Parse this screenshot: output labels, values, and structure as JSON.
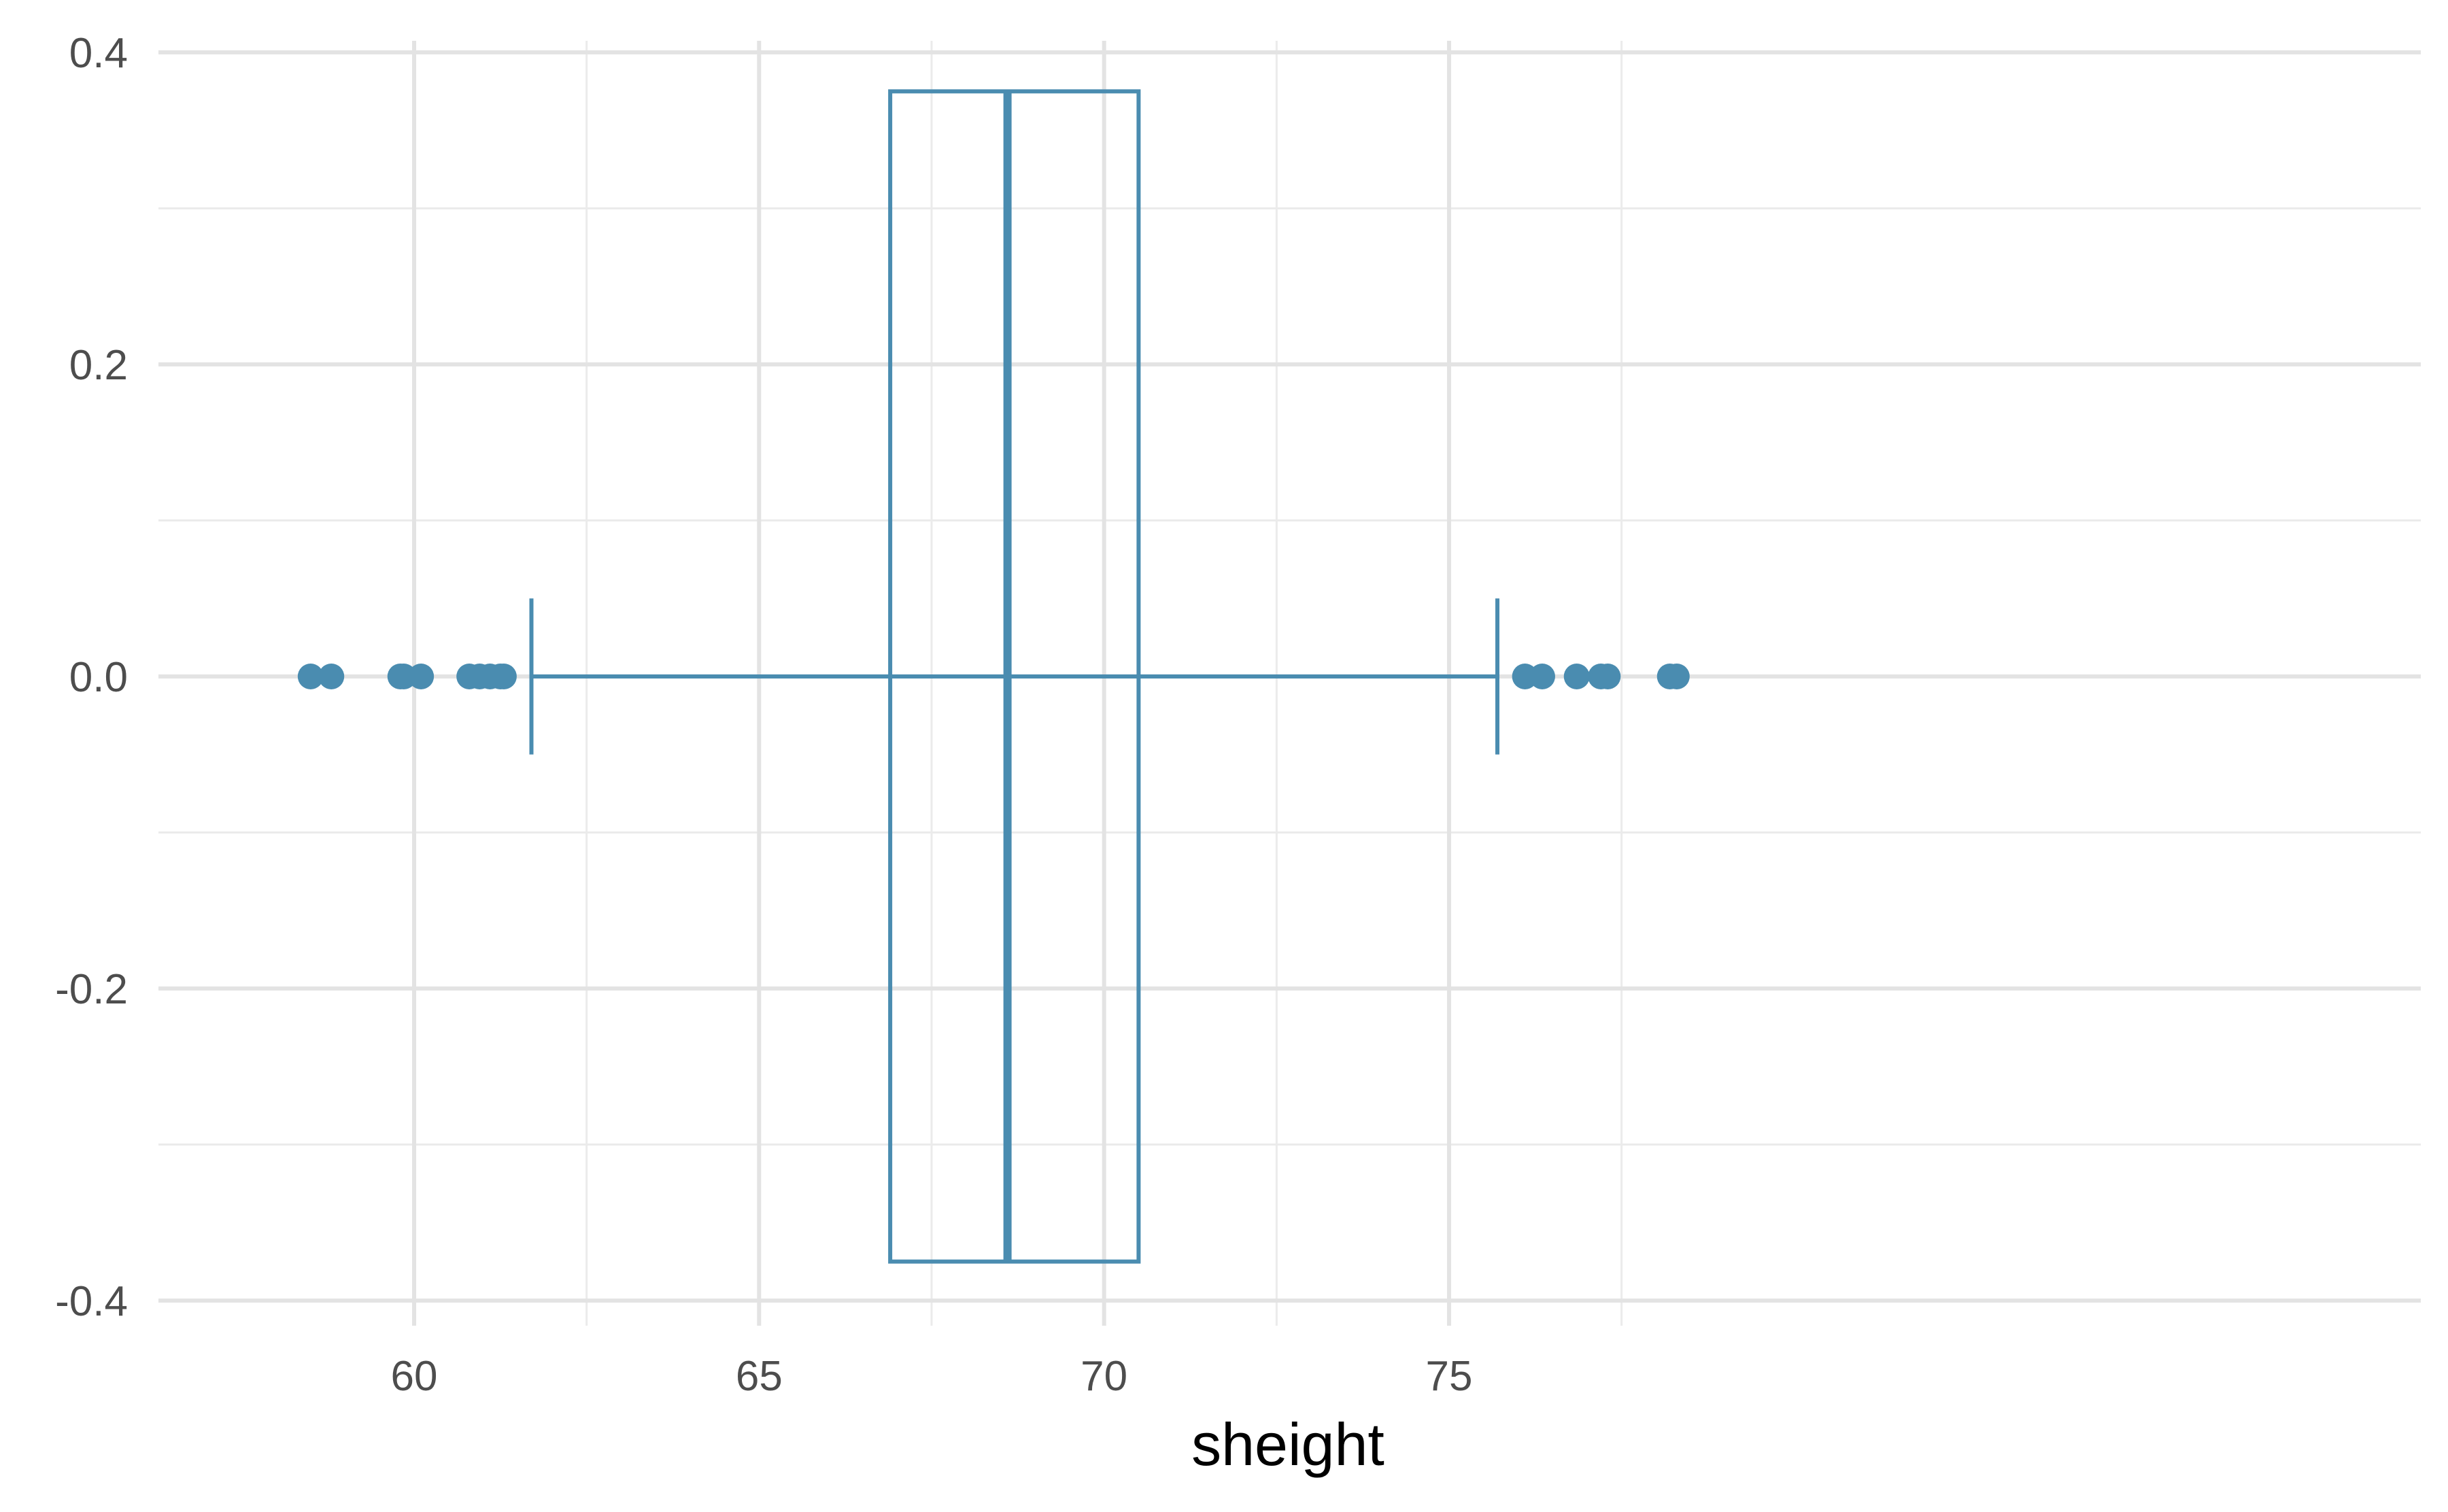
{
  "chart_data": {
    "type": "boxplot",
    "title": "",
    "xlabel": "sheight",
    "ylabel": "",
    "xlim": [
      57.5,
      79.3
    ],
    "ylim": [
      -0.4,
      0.4
    ],
    "x_ticks": [
      60,
      65,
      70,
      75
    ],
    "x_tick_labels": [
      "60",
      "65",
      "70",
      "75"
    ],
    "y_ticks": [
      -0.4,
      -0.2,
      0.0,
      0.2,
      0.4
    ],
    "y_tick_labels": [
      "-0.4",
      "-0.2",
      "0.0",
      "0.2",
      "0.4"
    ],
    "x_minor_ticks": [
      62.5,
      67.5,
      72.5,
      77.5
    ],
    "y_minor_ticks": [
      -0.3,
      -0.1,
      0.1,
      0.3
    ],
    "grid": true,
    "box": {
      "y": 0.0,
      "width": 0.75,
      "whisker_low": 61.7,
      "q1": 66.9,
      "median": 68.6,
      "q3": 70.5,
      "whisker_high": 75.7
    },
    "outliers": [
      58.5,
      58.8,
      59.8,
      59.85,
      60.1,
      60.8,
      60.95,
      61.1,
      61.25,
      61.3,
      76.1,
      76.35,
      76.85,
      77.2,
      77.3,
      78.2,
      78.3
    ],
    "color": "#4a8cb0"
  }
}
